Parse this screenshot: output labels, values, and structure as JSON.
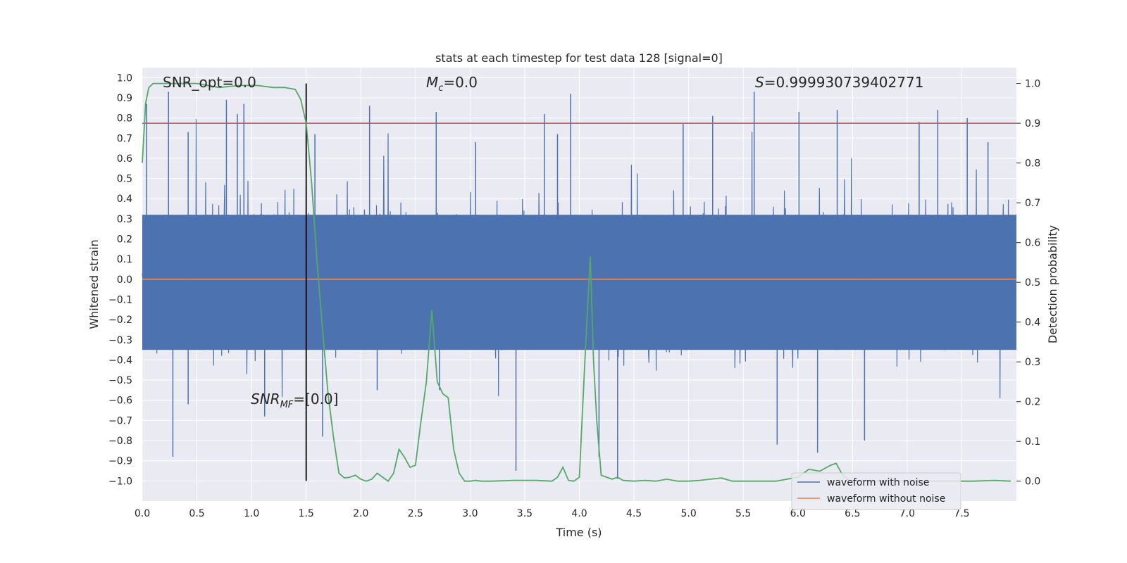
{
  "chart_data": {
    "type": "line",
    "title": "stats at each timestep for test data 128 [signal=0]",
    "xlabel": "Time (s)",
    "ylabel_left": "Whitened strain",
    "ylabel_right": "Detection probability",
    "xlim": [
      0.0,
      8.0
    ],
    "ylim_left": [
      -1.1,
      1.05
    ],
    "ylim_right": [
      -0.05,
      1.04
    ],
    "x_ticks": [
      0.0,
      0.5,
      1.0,
      1.5,
      2.0,
      2.5,
      3.0,
      3.5,
      4.0,
      4.5,
      5.0,
      5.5,
      6.0,
      6.5,
      7.0,
      7.5
    ],
    "x_tick_labels": [
      "0.0",
      "0.5",
      "1.0",
      "1.5",
      "2.0",
      "2.5",
      "3.0",
      "3.5",
      "4.0",
      "4.5",
      "5.0",
      "5.5",
      "6.0",
      "6.5",
      "7.0",
      "7.5"
    ],
    "y_left_ticks": [
      1.0,
      0.9,
      0.8,
      0.7,
      0.6,
      0.5,
      0.4,
      0.3,
      0.2,
      0.1,
      0.0,
      -0.1,
      -0.2,
      -0.3,
      -0.4,
      -0.5,
      -0.6,
      -0.7,
      -0.8,
      -0.9,
      -1.0
    ],
    "y_left_tick_labels": [
      "1.0",
      "0.9",
      "0.8",
      "0.7",
      "0.6",
      "0.5",
      "0.4",
      "0.3",
      "0.2",
      "0.1",
      "0.0",
      "−0.1",
      "−0.2",
      "−0.3",
      "−0.4",
      "−0.5",
      "−0.6",
      "−0.7",
      "−0.8",
      "−0.9",
      "−1.0"
    ],
    "y_right_ticks": [
      1.0,
      0.9,
      0.8,
      0.7,
      0.6,
      0.5,
      0.4,
      0.3,
      0.2,
      0.1,
      0.0
    ],
    "y_right_tick_labels": [
      "1.0",
      "0.9",
      "0.8",
      "0.7",
      "0.6",
      "0.5",
      "0.4",
      "0.3",
      "0.2",
      "0.1",
      "0.0"
    ],
    "grid": true,
    "legend_position": "bottom-right",
    "annotations": {
      "snr_opt": "SNR_opt=0.0",
      "mc_symbol": "M",
      "mc_sub": "c",
      "mc_value": "=0.0",
      "s_symbol": "S",
      "s_value": "=0.999930739402771",
      "snrmf_symbol": "SNR",
      "snrmf_sub": "MF",
      "snrmf_value": "=[0.0]"
    },
    "vertical_line_x": 1.5,
    "threshold_probability": 0.9,
    "series": [
      {
        "name": "waveform with noise",
        "axis": "left",
        "color": "#4c72b0",
        "envelope_description": "dense noise between approx -0.99 and 0.92",
        "spikes": [
          [
            0.04,
            0.87
          ],
          [
            0.24,
            0.93
          ],
          [
            0.28,
            -0.88
          ],
          [
            0.42,
            0.73
          ],
          [
            0.42,
            -0.62
          ],
          [
            0.77,
            0.89
          ],
          [
            0.87,
            0.82
          ],
          [
            0.93,
            0.87
          ],
          [
            1.12,
            -0.68
          ],
          [
            1.58,
            0.72
          ],
          [
            1.65,
            -0.78
          ],
          [
            2.08,
            0.86
          ],
          [
            2.15,
            -0.55
          ],
          [
            2.69,
            0.83
          ],
          [
            2.72,
            -0.55
          ],
          [
            3.05,
            0.68
          ],
          [
            3.42,
            -0.95
          ],
          [
            3.68,
            0.82
          ],
          [
            3.8,
            0.72
          ],
          [
            3.92,
            0.92
          ],
          [
            4.18,
            -0.88
          ],
          [
            4.35,
            -0.99
          ],
          [
            4.95,
            0.77
          ],
          [
            5.22,
            0.81
          ],
          [
            5.6,
            0.93
          ],
          [
            5.81,
            -0.82
          ],
          [
            6.01,
            0.83
          ],
          [
            6.18,
            -0.86
          ],
          [
            6.36,
            0.84
          ],
          [
            6.61,
            -0.8
          ],
          [
            7.11,
            0.78
          ],
          [
            7.28,
            0.84
          ],
          [
            7.55,
            0.8
          ],
          [
            7.74,
            0.68
          ]
        ]
      },
      {
        "name": "waveform without noise",
        "axis": "left",
        "color": "#dd8452",
        "x": [
          0.0,
          8.0
        ],
        "y": [
          0.0,
          0.0
        ]
      },
      {
        "name": "detection probability",
        "axis": "right",
        "color": "#55a868",
        "x": [
          0.0,
          0.03,
          0.06,
          0.1,
          0.15,
          0.3,
          0.5,
          0.7,
          0.9,
          1.05,
          1.2,
          1.3,
          1.4,
          1.45,
          1.5,
          1.55,
          1.6,
          1.65,
          1.7,
          1.75,
          1.8,
          1.85,
          1.9,
          1.95,
          2.0,
          2.05,
          2.1,
          2.15,
          2.2,
          2.25,
          2.3,
          2.35,
          2.4,
          2.45,
          2.5,
          2.55,
          2.6,
          2.65,
          2.7,
          2.75,
          2.8,
          2.85,
          2.9,
          2.95,
          3.0,
          3.05,
          3.1,
          3.2,
          3.4,
          3.6,
          3.75,
          3.8,
          3.85,
          3.9,
          3.95,
          4.0,
          4.05,
          4.1,
          4.13,
          4.16,
          4.2,
          4.25,
          4.3,
          4.35,
          4.4,
          4.5,
          4.6,
          4.7,
          4.8,
          4.9,
          5.0,
          5.1,
          5.2,
          5.3,
          5.4,
          5.5,
          5.6,
          5.7,
          5.8,
          5.9,
          6.0,
          6.1,
          6.2,
          6.3,
          6.35,
          6.4,
          6.45,
          6.5,
          6.6,
          6.7,
          6.8,
          7.0,
          7.2,
          7.4,
          7.6,
          7.8,
          7.95
        ],
        "y": [
          0.8,
          0.95,
          0.99,
          1.0,
          1.0,
          1.0,
          1.0,
          0.99,
          0.995,
          0.995,
          0.99,
          0.99,
          0.985,
          0.96,
          0.9,
          0.75,
          0.55,
          0.38,
          0.22,
          0.11,
          0.02,
          0.008,
          0.01,
          0.015,
          0.005,
          0.0,
          0.005,
          0.02,
          0.01,
          0.0,
          0.02,
          0.08,
          0.06,
          0.035,
          0.04,
          0.15,
          0.25,
          0.43,
          0.25,
          0.22,
          0.21,
          0.08,
          0.02,
          0.0,
          0.0,
          0.002,
          0.0,
          0.0,
          0.002,
          0.002,
          0.0,
          0.01,
          0.035,
          0.002,
          0.0,
          0.01,
          0.3,
          0.565,
          0.3,
          0.15,
          0.015,
          0.01,
          0.005,
          0.01,
          0.002,
          0.0,
          0.002,
          0.0,
          0.005,
          0.0,
          0.0,
          0.002,
          0.005,
          0.008,
          0.0,
          0.0,
          0.0,
          0.0,
          0.0,
          0.005,
          0.01,
          0.03,
          0.025,
          0.04,
          0.045,
          0.02,
          0.005,
          0.0,
          0.002,
          0.0,
          0.002,
          0.0,
          0.0,
          0.0,
          0.0,
          0.002,
          0.0
        ]
      }
    ]
  }
}
